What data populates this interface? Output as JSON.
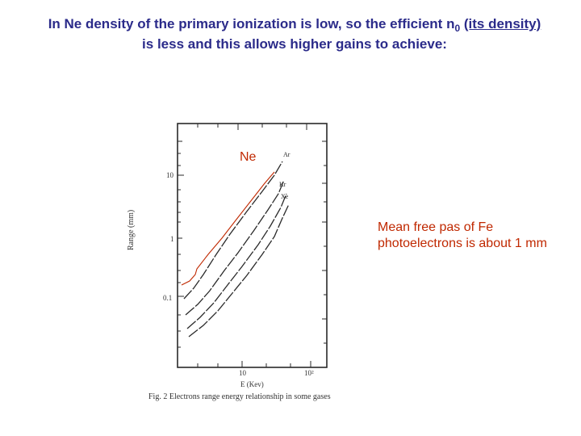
{
  "title": {
    "line1_pre": "In Ne density of the primary ionization is low, so the efficient n",
    "line1_sub": "0",
    "line1_post": " ",
    "line1_underlined": "(its density)",
    "line2": "is less and this allows higher gains to achieve:"
  },
  "figure": {
    "ylabel": "Range (mm)",
    "ytick_top": "10",
    "ytick_mid": "1",
    "ytick_low": "0.1",
    "xtick_1": "10",
    "xtick_2": "10²",
    "xlabel": "E (Kev)",
    "caption": "Fig. 2  Electrons range energy relationship in some gases",
    "gas_ar": "Ar",
    "gas_kr": "Kr",
    "gas_xe": "Xe"
  },
  "ne_label": "Ne",
  "note": "Mean free pas of Fe photoelectrons is about 1 mm",
  "colors": {
    "title": "#2b2b8a",
    "accent": "#c02800"
  }
}
